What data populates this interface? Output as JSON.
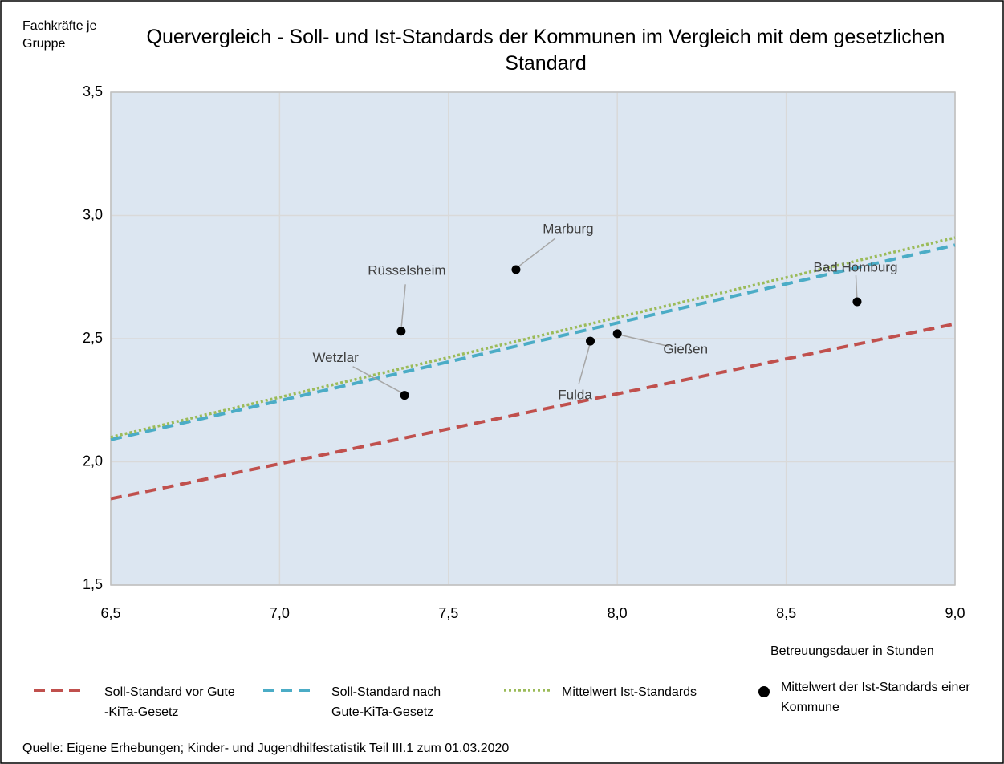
{
  "chart_data": {
    "type": "scatter",
    "title": "Quervergleich - Soll- und Ist-Standards der Kommunen im Vergleich mit dem gesetzlichen Standard",
    "y_label": "Fachkräfte je Gruppe",
    "x_label": "Betreuungsdauer in Stunden",
    "source": "Quelle: Eigene Erhebungen; Kinder- und Jugendhilfestatistik Teil III.1 zum 01.03.2020",
    "xlim": [
      6.5,
      9.0
    ],
    "ylim": [
      1.5,
      3.5
    ],
    "xticks": [
      {
        "value": 6.5,
        "label": "6,5"
      },
      {
        "value": 7.0,
        "label": "7,0"
      },
      {
        "value": 7.5,
        "label": "7,5"
      },
      {
        "value": 8.0,
        "label": "8,0"
      },
      {
        "value": 8.5,
        "label": "8,5"
      },
      {
        "value": 9.0,
        "label": "9,0"
      }
    ],
    "yticks": [
      {
        "value": 1.5,
        "label": "1,5"
      },
      {
        "value": 2.0,
        "label": "2,0"
      },
      {
        "value": 2.5,
        "label": "2,5"
      },
      {
        "value": 3.0,
        "label": "3,0"
      },
      {
        "value": 3.5,
        "label": "3,5"
      }
    ],
    "grid": true,
    "series": [
      {
        "name": "Soll-Standard vor Gute -KiTa-Gesetz",
        "color": "#c0504d",
        "style": "dashed",
        "x": [
          6.5,
          9.0
        ],
        "values": [
          1.85,
          2.56
        ]
      },
      {
        "name": "Soll-Standard nach Gute-KiTa-Gesetz",
        "color": "#4bacc6",
        "style": "dashed",
        "x": [
          6.5,
          9.0
        ],
        "values": [
          2.09,
          2.88
        ]
      },
      {
        "name": "Mittelwert Ist-Standards",
        "color": "#9bbb59",
        "style": "dotted",
        "x": [
          6.5,
          9.0
        ],
        "values": [
          2.1,
          2.91
        ]
      },
      {
        "name": "Mittelwert der Ist-Standards einer Kommune",
        "color": "#000000",
        "style": "marker",
        "x": [
          7.7,
          7.36,
          7.37,
          7.92,
          8.0,
          8.71
        ],
        "values": [
          2.78,
          2.53,
          2.27,
          2.49,
          2.52,
          2.65
        ],
        "labels": [
          "Marburg",
          "Rüsselsheim",
          "Wetzlar",
          "Fulda",
          "Gießen",
          "Bad Homburg"
        ]
      }
    ]
  }
}
